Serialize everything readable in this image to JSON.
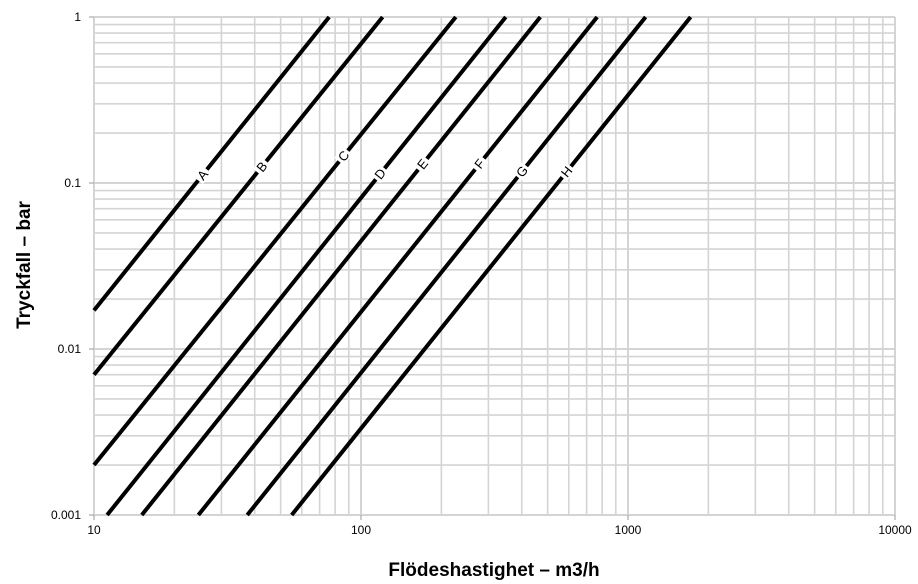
{
  "chart_data": {
    "type": "line",
    "title": "",
    "xlabel": "Flödeshastighet – m3/h",
    "ylabel": "Tryckfall – bar",
    "x_scale": "log",
    "y_scale": "log",
    "xlim": [
      10,
      10000
    ],
    "ylim": [
      0.001,
      1
    ],
    "grid": true,
    "legend": "none",
    "x_ticks": [
      10,
      100,
      1000,
      10000
    ],
    "x_tick_labels": [
      "10",
      "100",
      "1000",
      "10000"
    ],
    "y_ticks": [
      0.001,
      0.01,
      0.1,
      1
    ],
    "y_tick_labels": [
      "0.001",
      "0.01",
      "0.1",
      "1"
    ],
    "line_color": "#000000",
    "grid_color": "#d4d4d4",
    "series": [
      {
        "name": "A",
        "label_at_x": 25.5,
        "points": [
          [
            10,
            0.0171
          ],
          [
            76.0,
            1
          ]
        ]
      },
      {
        "name": "B",
        "label_at_x": 42.5,
        "points": [
          [
            10,
            0.007
          ],
          [
            120.5,
            1
          ]
        ]
      },
      {
        "name": "C",
        "label_at_x": 86,
        "points": [
          [
            10,
            0.002
          ],
          [
            226.5,
            1
          ]
        ]
      },
      {
        "name": "D",
        "label_at_x": 118,
        "points": [
          [
            11.2,
            0.001
          ],
          [
            348.5,
            1
          ]
        ]
      },
      {
        "name": "E",
        "label_at_x": 170,
        "points": [
          [
            15.1,
            0.001
          ],
          [
            469.5,
            1
          ]
        ]
      },
      {
        "name": "F",
        "label_at_x": 278,
        "points": [
          [
            24.6,
            0.001
          ],
          [
            766.5,
            1
          ]
        ]
      },
      {
        "name": "G",
        "label_at_x": 401,
        "points": [
          [
            37.5,
            0.001
          ],
          [
            1164,
            1
          ]
        ]
      },
      {
        "name": "H",
        "label_at_x": 589,
        "points": [
          [
            55.0,
            0.001
          ],
          [
            1716,
            1
          ]
        ]
      }
    ]
  }
}
